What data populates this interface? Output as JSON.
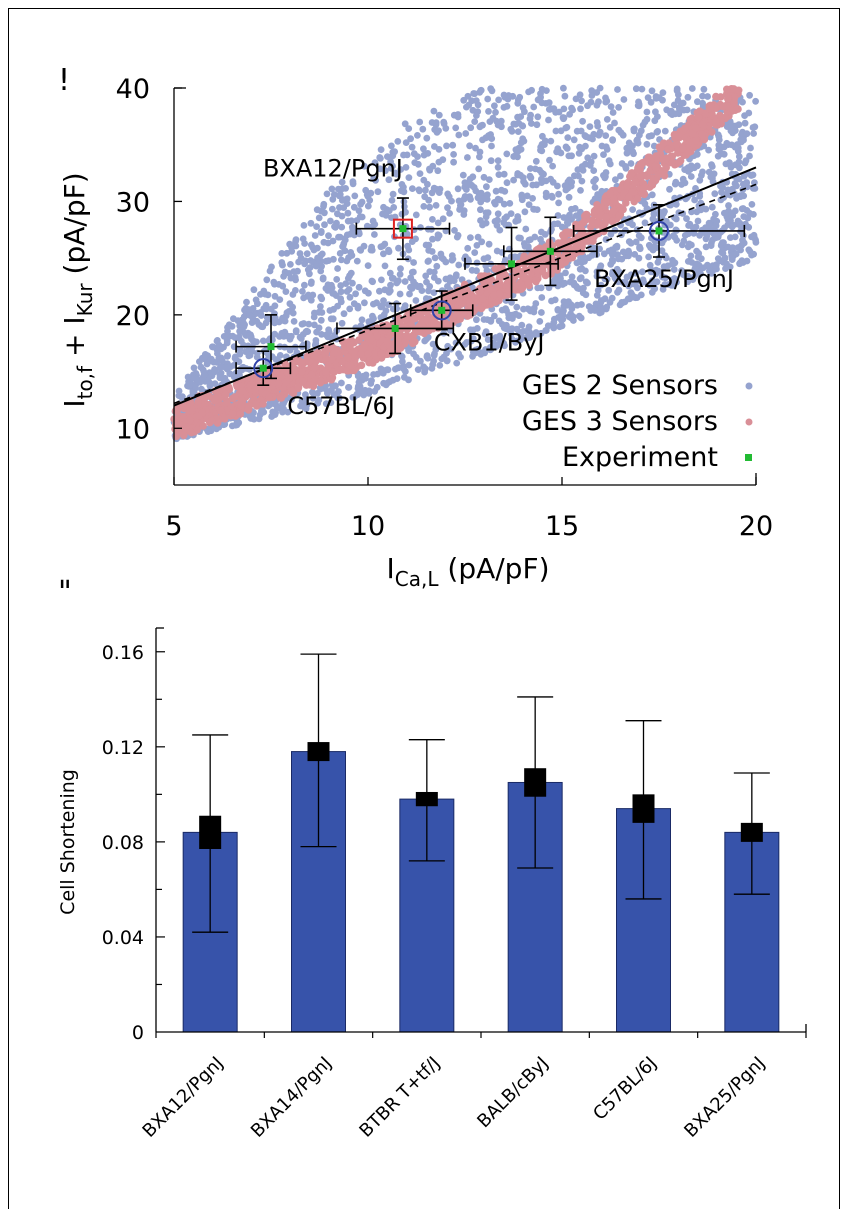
{
  "panel_labels": [
    "!",
    "\""
  ],
  "colors": {
    "ges2": "#95a3cf",
    "ges3": "#d98f97",
    "experiment": "#22bb33",
    "circle": "#3344aa",
    "square": "#dd2222",
    "bar": "#3753aa"
  },
  "chart_data": [
    {
      "type": "scatter",
      "xlabel_main": "I",
      "xlabel_sub": "Ca,L",
      "xlabel_rest": " (pA/pF)",
      "ylabel_main_1": "I",
      "ylabel_sub_1": "to,f",
      "ylabel_mid": " + I",
      "ylabel_sub_2": "Kur",
      "ylabel_rest": " (pA/pF)",
      "xlim": [
        5,
        20
      ],
      "ylim": [
        5,
        40
      ],
      "xticks": [
        "5",
        "10",
        "15",
        "20"
      ],
      "yticks": [
        "10",
        "20",
        "30",
        "40"
      ],
      "grid": false,
      "legend_position": "bottom-right",
      "legend": [
        "GES 2 Sensors",
        "GES 3 Sensors",
        "Experiment"
      ],
      "series": [
        {
          "name": "GES 2 Sensors",
          "kind": "cloud",
          "band_lower": [
            [
              5,
              9
            ],
            [
              10,
              13
            ],
            [
              15,
              19
            ],
            [
              20,
              25
            ]
          ],
          "band_upper": [
            [
              5,
              13
            ],
            [
              7,
              22
            ],
            [
              9,
              31
            ],
            [
              11,
              37
            ],
            [
              13,
              40
            ],
            [
              20,
              40
            ]
          ]
        },
        {
          "name": "GES 3 Sensors",
          "kind": "cloud",
          "center_line": [
            [
              5,
              10.5
            ],
            [
              10,
              17
            ],
            [
              15,
              25.5
            ],
            [
              19.5,
              39.5
            ]
          ],
          "half_width": 1.5
        },
        {
          "name": "Experiment",
          "points": [
            {
              "label": "C57BL/6J",
              "x": 7.3,
              "y": 15.3,
              "xerr": 0.7,
              "yerr": 1.5,
              "marker": "circle"
            },
            {
              "label": "",
              "x": 7.5,
              "y": 17.2,
              "xerr": 0.9,
              "yerr": 2.8,
              "marker": "none"
            },
            {
              "label": "",
              "x": 10.7,
              "y": 18.8,
              "xerr": 1.5,
              "yerr": 2.2,
              "marker": "none"
            },
            {
              "label": "CXB1/ByJ",
              "x": 11.9,
              "y": 20.4,
              "xerr": 0.8,
              "yerr": 1.7,
              "marker": "circle"
            },
            {
              "label": "BXA12/PgnJ",
              "x": 10.9,
              "y": 27.6,
              "xerr": 1.2,
              "yerr": 2.7,
              "marker": "square"
            },
            {
              "label": "",
              "x": 13.7,
              "y": 24.5,
              "xerr": 1.2,
              "yerr": 3.2,
              "marker": "none"
            },
            {
              "label": "",
              "x": 14.7,
              "y": 25.6,
              "xerr": 1.2,
              "yerr": 3.0,
              "marker": "none"
            },
            {
              "label": "BXA25/PgnJ",
              "x": 17.5,
              "y": 27.4,
              "xerr": 2.2,
              "yerr": 2.3,
              "marker": "circle"
            }
          ]
        }
      ],
      "fit_solid": [
        [
          5,
          12
        ],
        [
          20,
          33
        ]
      ],
      "fit_dashed": [
        [
          5,
          12.2
        ],
        [
          20,
          31.5
        ]
      ]
    },
    {
      "type": "bar",
      "ylabel": "Cell Shortening",
      "ylim": [
        0,
        0.17
      ],
      "yticks": [
        "0",
        "0.04",
        "0.08",
        "0.12",
        "0.16"
      ],
      "categories": [
        "BXA12/PgnJ",
        "BXA14/PgnJ",
        "BTBR T+tf/J",
        "BALB/cByJ",
        "C57BL/6J",
        "BXA25/PgnJ"
      ],
      "values": [
        0.084,
        0.118,
        0.098,
        0.105,
        0.094,
        0.084
      ],
      "err_upper": [
        0.125,
        0.159,
        0.123,
        0.141,
        0.131,
        0.109
      ],
      "err_lower": [
        0.042,
        0.078,
        0.072,
        0.069,
        0.056,
        0.058
      ],
      "sim_values": [
        0.084,
        0.118,
        0.098,
        0.105,
        0.094,
        0.084
      ],
      "sim_err": [
        0.007,
        0.004,
        0.003,
        0.006,
        0.006,
        0.004
      ]
    }
  ]
}
